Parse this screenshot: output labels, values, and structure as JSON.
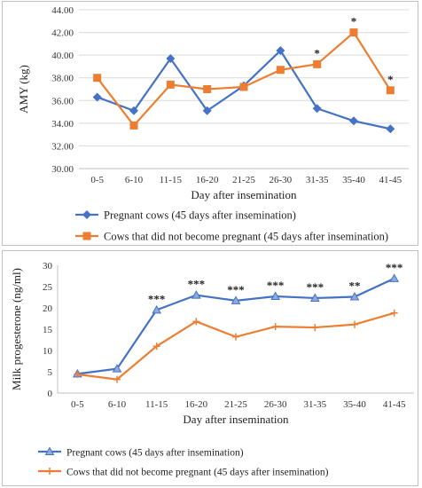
{
  "colors": {
    "pregnant": "#4472C4",
    "not_pregnant": "#ED7D31",
    "grid": "#d9d9d9",
    "axis": "#bfbfbf"
  },
  "chart_data": [
    {
      "type": "line",
      "categories": [
        "0-5",
        "6-10",
        "11-15",
        "16-20",
        "21-25",
        "26-30",
        "31-35",
        "35-40",
        "41-45"
      ],
      "series": [
        {
          "name": "Pregnant cows (45 days after insemination)",
          "marker": "diamond",
          "values": [
            36.3,
            35.1,
            39.7,
            35.1,
            37.3,
            40.4,
            35.3,
            34.2,
            33.5
          ]
        },
        {
          "name": "Cows that did not become pregnant (45 days after insemination)",
          "marker": "square",
          "values": [
            38.0,
            33.8,
            37.4,
            37.0,
            37.2,
            38.7,
            39.2,
            42.0,
            36.9
          ]
        }
      ],
      "significance": [
        "",
        "",
        "",
        "",
        "",
        "",
        "*",
        "*",
        "*"
      ],
      "xlabel": "Day after insemination",
      "ylabel": "AMY (kg)",
      "ylim": [
        30,
        44
      ],
      "yticks": [
        "30.00",
        "32.00",
        "34.00",
        "36.00",
        "38.00",
        "40.00",
        "42.00",
        "44.00"
      ],
      "grid": true,
      "legend": "bottom"
    },
    {
      "type": "line",
      "categories": [
        "0-5",
        "6-10",
        "11-15",
        "16-20",
        "21-25",
        "26-30",
        "31-35",
        "35-40",
        "41-45"
      ],
      "series": [
        {
          "name": "Pregnant cows (45 days after insemination)",
          "marker": "triangle",
          "values": [
            4.5,
            5.7,
            19.5,
            23.0,
            21.7,
            22.7,
            22.3,
            22.6,
            26.9
          ]
        },
        {
          "name": "Cows that did not become pregnant (45 days after insemination)",
          "marker": "cross",
          "values": [
            4.4,
            3.2,
            11.0,
            16.8,
            13.2,
            15.6,
            15.4,
            16.1,
            18.8
          ]
        }
      ],
      "significance": [
        "",
        "",
        "***",
        "***",
        "***",
        "***",
        "***",
        "**",
        "***"
      ],
      "xlabel": "Day after insemination",
      "ylabel": "Milk progesterone (ng/ml)",
      "ylim": [
        0,
        30
      ],
      "yticks": [
        "0",
        "5",
        "10",
        "15",
        "20",
        "25",
        "30"
      ],
      "grid": false,
      "legend": "bottom"
    }
  ]
}
